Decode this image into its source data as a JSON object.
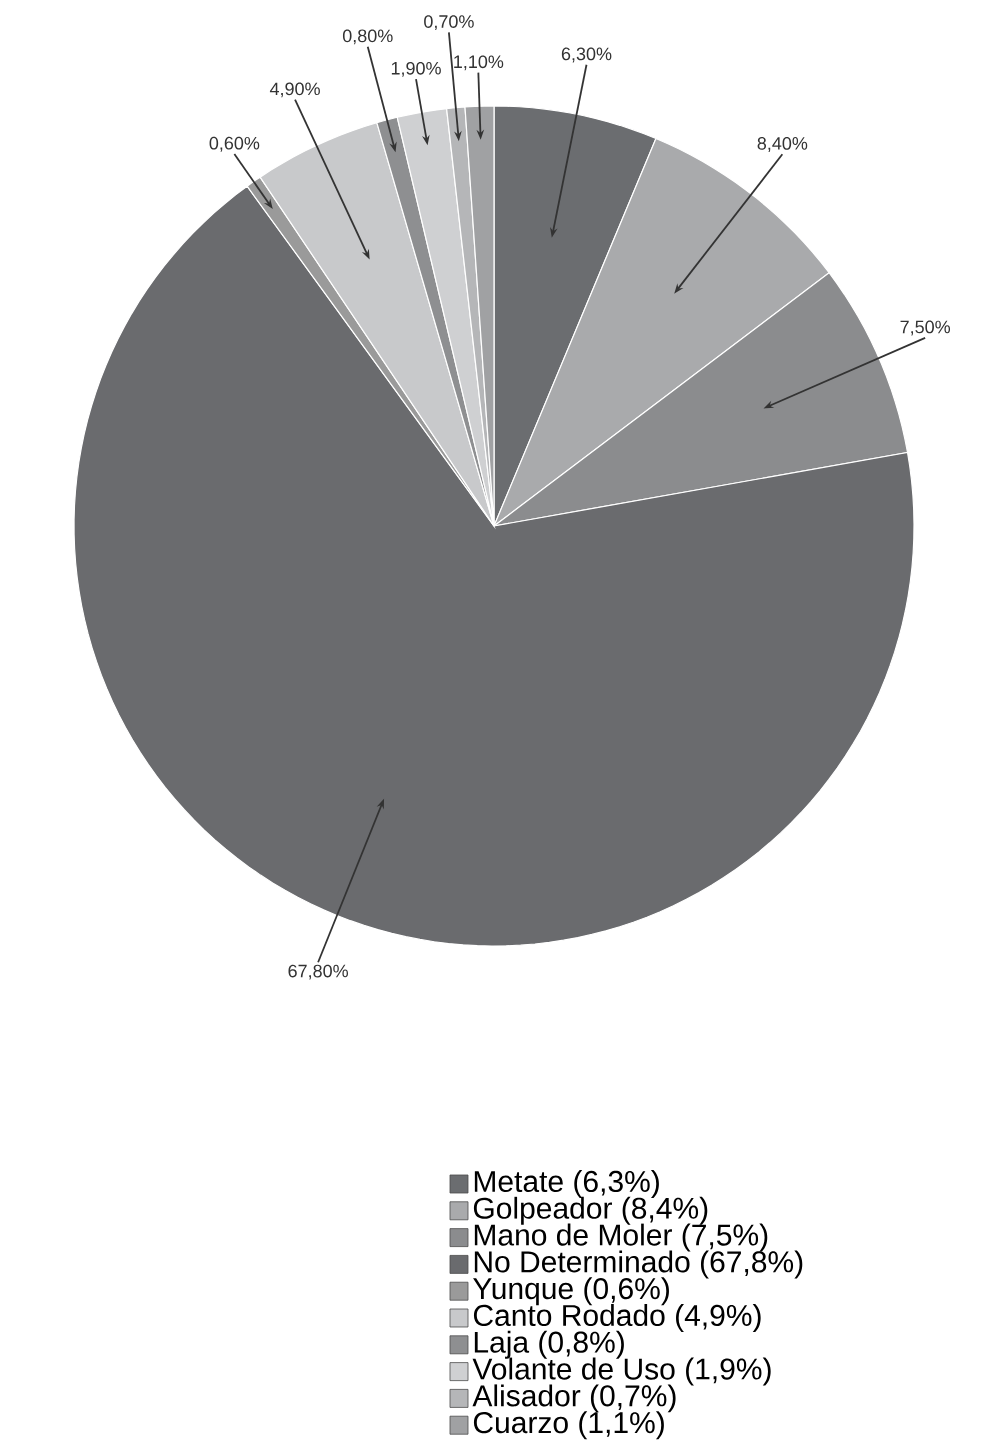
{
  "chart_data": {
    "type": "pie",
    "categories": [
      "Metate (6,3%)",
      "Golpeador (8,4%)",
      "Mano de Moler (7,5%)",
      "No Determinado (67,8%)",
      "Yunque (0,6%)",
      "Canto Rodado (4,9%)",
      "Laja (0,8%)",
      "Volante de Uso (1,9%)",
      "Alisador (0,7%)",
      "Cuarzo (1,1%)"
    ],
    "values": [
      6.3,
      8.4,
      7.5,
      67.8,
      0.6,
      4.9,
      0.8,
      1.9,
      0.7,
      1.1
    ],
    "value_labels": [
      "6,30%",
      "8,40%",
      "7,50%",
      "67,80%",
      "0,60%",
      "4,90%",
      "0,80%",
      "1,90%",
      "0,70%",
      "1,10%"
    ],
    "colors": [
      "#6b6d70",
      "#a9aaac",
      "#8b8c8e",
      "#6a6b6e",
      "#9a9a9a",
      "#c8c9cb",
      "#8e8f91",
      "#cfd0d2",
      "#b5b6b8",
      "#a0a1a3"
    ],
    "legend": "bottom"
  }
}
